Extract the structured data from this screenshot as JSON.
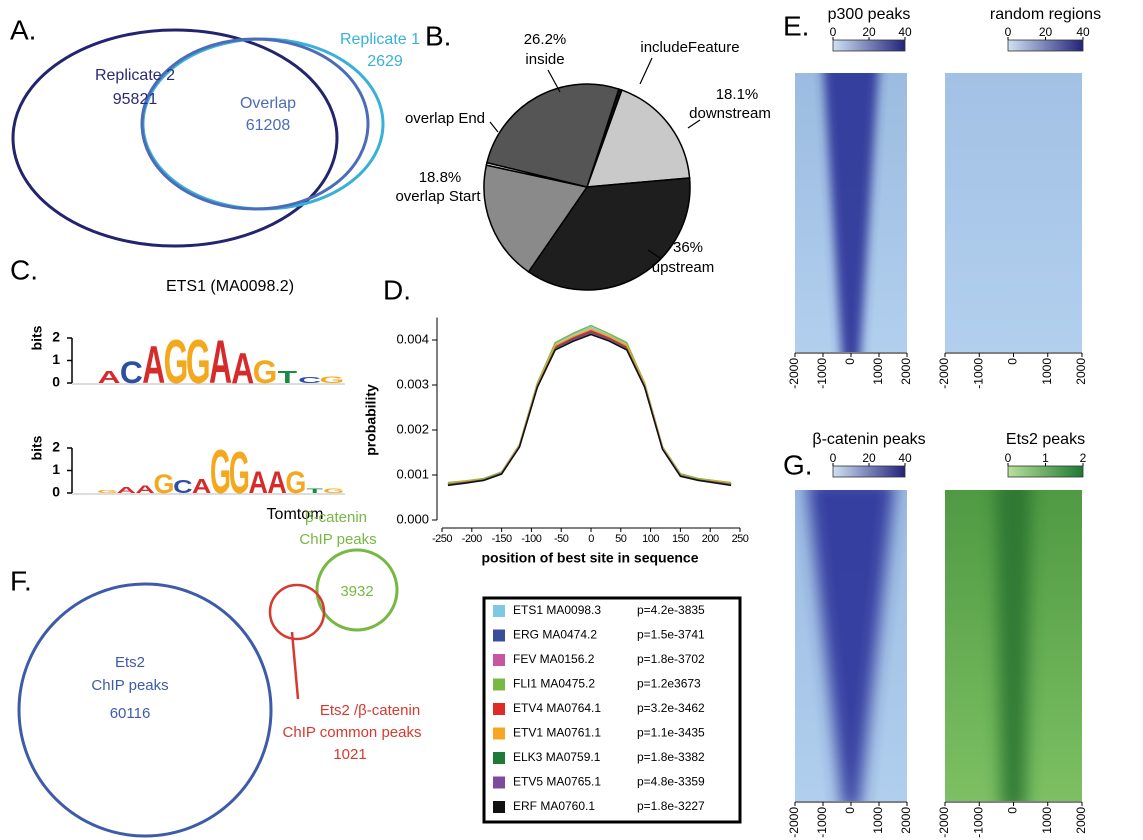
{
  "panels": {
    "A": {
      "letter": "A.",
      "replicate2": {
        "name": "Replicate 2",
        "count": 95821
      },
      "replicate1": {
        "name": "Replicate 1",
        "count": 2629
      },
      "overlap": {
        "name": "Overlap",
        "count": 61208
      }
    },
    "B": {
      "letter": "B.",
      "type": "pie",
      "names": [
        "includeFeature",
        "downstream",
        "upstream",
        "overlap Start",
        "overlap End",
        "inside"
      ],
      "values": [
        0.5,
        18.1,
        36,
        18.8,
        0.4,
        26.2
      ],
      "value_labels": [
        null,
        "18.1%",
        "36%",
        "18.8%",
        null,
        "26.2%"
      ],
      "colors": [
        "#111111",
        "#c9c9c9",
        "#1e1e1e",
        "#8a8a8a",
        "#eeeeee",
        "#555555"
      ]
    },
    "C": {
      "letter": "C.",
      "title": "ETS1 (MA0098.2)",
      "footer": "Tomtom",
      "axis_label": "bits",
      "ylim": [
        0,
        2
      ],
      "yticks": [
        0,
        1,
        2
      ],
      "logos": [
        {
          "letters": [
            "A",
            "C",
            "A",
            "G",
            "G",
            "A",
            "A",
            "G",
            "T",
            "C",
            "G"
          ],
          "bits": [
            0.55,
            1.0,
            1.7,
            2,
            2,
            1.95,
            1.4,
            1.05,
            0.55,
            0.25,
            0.3
          ]
        },
        {
          "letters": [
            "G",
            "A",
            "A",
            "G",
            "C",
            "A",
            "G",
            "G",
            "A",
            "A",
            "G",
            "T",
            "G"
          ],
          "bits": [
            0.15,
            0.25,
            0.35,
            0.85,
            0.6,
            0.65,
            2,
            1.9,
            1.0,
            1.0,
            1.0,
            0.2,
            0.2
          ]
        }
      ]
    },
    "D": {
      "letter": "D.",
      "type": "line",
      "xlabel": "position of best site in sequence",
      "ylabel": "probability",
      "xlim": [
        -250,
        250
      ],
      "xticks": [
        -250,
        -200,
        -150,
        -100,
        -50,
        0,
        50,
        100,
        150,
        200,
        250
      ],
      "ylim": [
        0,
        0.0045
      ],
      "yticks": [
        {
          "value": 0,
          "label": "0.000"
        },
        0.001,
        0.002,
        0.003,
        0.004
      ],
      "x": [
        -240,
        -210,
        -180,
        -150,
        -120,
        -90,
        -60,
        -30,
        0,
        30,
        60,
        90,
        120,
        150,
        180,
        210,
        235
      ],
      "series": [
        {
          "name": "ETS1 MA0098.3",
          "p": "p=4.2e-3835",
          "color": "#7ec8e3",
          "values": [
            0.00082,
            0.00086,
            0.00092,
            0.00107,
            0.00168,
            0.00305,
            0.00392,
            0.00412,
            0.00428,
            0.0041,
            0.00392,
            0.00305,
            0.00163,
            0.00103,
            0.00092,
            0.00087,
            0.00082
          ]
        },
        {
          "name": "ERG MA0474.2",
          "p": "p=1.5e-3741",
          "color": "#3a4d9c",
          "values": [
            0.00079,
            0.00084,
            0.00089,
            0.00104,
            0.00164,
            0.00298,
            0.00383,
            0.00402,
            0.00418,
            0.00403,
            0.00383,
            0.00298,
            0.00159,
            0.00099,
            0.00089,
            0.00084,
            0.00079
          ]
        },
        {
          "name": "FEV MA0156.2",
          "p": "p=1.8e-3702",
          "color": "#c9559f",
          "values": [
            0.00081,
            0.00085,
            0.00091,
            0.00105,
            0.00166,
            0.00301,
            0.00387,
            0.00407,
            0.00422,
            0.00407,
            0.00387,
            0.00301,
            0.00161,
            0.00101,
            0.00091,
            0.00086,
            0.00081
          ]
        },
        {
          "name": "FLI1 MA0475.2",
          "p": "p=1.2e3673",
          "color": "#79b843",
          "values": [
            0.00083,
            0.00087,
            0.00092,
            0.00106,
            0.00167,
            0.00303,
            0.00394,
            0.00415,
            0.00432,
            0.00414,
            0.00394,
            0.00303,
            0.00162,
            0.00102,
            0.00092,
            0.00087,
            0.00083
          ]
        },
        {
          "name": "ETV4 MA0764.1",
          "p": "p=3.2e-3462",
          "color": "#e02a26",
          "values": [
            0.0008,
            0.00085,
            0.0009,
            0.00105,
            0.00165,
            0.003,
            0.00385,
            0.00405,
            0.0042,
            0.00405,
            0.00385,
            0.003,
            0.0016,
            0.001,
            0.0009,
            0.00085,
            0.0008
          ]
        },
        {
          "name": "ETV1 MA0761.1",
          "p": "p=1.1e-3435",
          "color": "#f5a623",
          "values": [
            0.00081,
            0.00086,
            0.0009,
            0.00106,
            0.00166,
            0.00302,
            0.00388,
            0.00408,
            0.00424,
            0.00408,
            0.00388,
            0.00302,
            0.00161,
            0.00101,
            0.0009,
            0.00086,
            0.00081
          ]
        },
        {
          "name": "ELK3 MA0759.1",
          "p": "p=1.8e-3382",
          "color": "#1f7a3a",
          "values": [
            0.00079,
            0.00084,
            0.00089,
            0.00104,
            0.00163,
            0.00297,
            0.00381,
            0.004,
            0.00416,
            0.00401,
            0.00381,
            0.00297,
            0.00158,
            0.00099,
            0.00089,
            0.00084,
            0.00079
          ]
        },
        {
          "name": "ETV5 MA0765.1",
          "p": "p=4.8e-3359",
          "color": "#7d4a9c",
          "values": [
            0.00078,
            0.00083,
            0.00088,
            0.00103,
            0.00163,
            0.00296,
            0.0038,
            0.00399,
            0.00415,
            0.004,
            0.0038,
            0.00296,
            0.00158,
            0.00098,
            0.00088,
            0.00083,
            0.00078
          ]
        },
        {
          "name": "ERF MA0760.1",
          "p": "p=1.8e-3227",
          "color": "#111111",
          "values": [
            0.00077,
            0.00082,
            0.00088,
            0.00102,
            0.00162,
            0.00295,
            0.00378,
            0.00397,
            0.00412,
            0.00398,
            0.00378,
            0.00295,
            0.00157,
            0.00097,
            0.00088,
            0.00082,
            0.00077
          ]
        }
      ]
    },
    "E": {
      "letter": "E.",
      "maps": [
        {
          "title": "p300 peaks",
          "colorbar": {
            "lim": [
              0,
              40
            ],
            "ticks": [
              0,
              20,
              40
            ],
            "colors": [
              "#cfe1f3",
              "#22237a"
            ]
          }
        },
        {
          "title": "random regions",
          "colorbar": {
            "lim": [
              0,
              40
            ],
            "ticks": [
              0,
              20,
              40
            ],
            "colors": [
              "#cfe1f3",
              "#22237a"
            ]
          }
        }
      ]
    },
    "F": {
      "letter": "F.",
      "ets2": {
        "lines": [
          "Ets2",
          "ChIP peaks"
        ],
        "count": 60116
      },
      "catenin": {
        "lines": [
          "β-catenin",
          "ChIP peaks"
        ],
        "count": 3932
      },
      "common": {
        "lines": [
          "Ets2 /β-catenin",
          "ChIP common peaks"
        ],
        "count": 1021
      }
    },
    "G": {
      "letter": "G.",
      "maps": [
        {
          "title": "β-catenin peaks",
          "colorbar": {
            "lim": [
              0,
              40
            ],
            "ticks": [
              0,
              20,
              40
            ],
            "colors": [
              "#cfe1f3",
              "#22237a"
            ]
          }
        },
        {
          "title": "Ets2 peaks",
          "colorbar": {
            "lim": [
              0,
              2
            ],
            "ticks": [
              0,
              1,
              2
            ],
            "colors": [
              "#b9e09a",
              "#1d7a33"
            ]
          }
        }
      ]
    },
    "heatmap_axis": {
      "xlim": [
        -2000,
        2000
      ],
      "xticks": [
        -2000,
        -1000,
        0,
        1000,
        2000
      ]
    }
  }
}
